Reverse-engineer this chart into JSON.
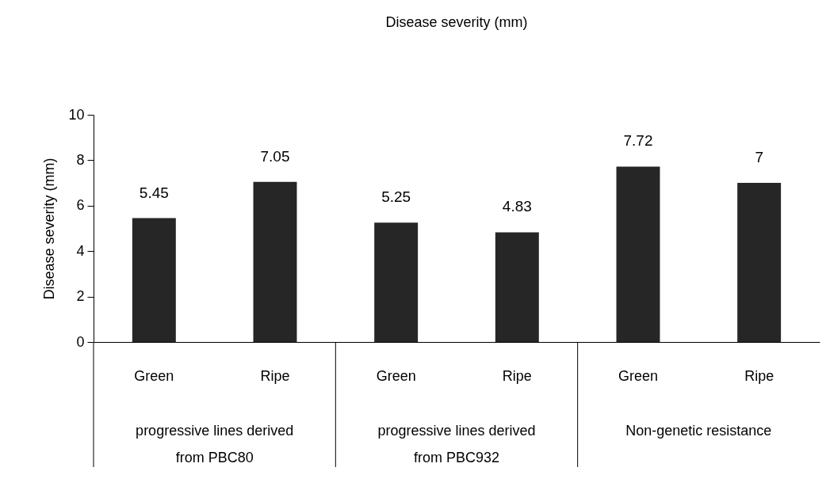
{
  "chart_data": {
    "type": "bar",
    "title": "Disease severity (mm)",
    "ylabel": "Disease severity (mm)",
    "categories": [
      "Green",
      "Ripe",
      "Green",
      "Ripe",
      "Green",
      "Ripe"
    ],
    "values": [
      5.45,
      7.05,
      5.25,
      4.83,
      7.72,
      7
    ],
    "color": "#262626",
    "data_labels": true,
    "ylim": [
      0,
      10
    ],
    "yticks": [
      0,
      2,
      4,
      6,
      8,
      10
    ],
    "grid": false,
    "annotations": [
      "progressive lines derived from PBC80",
      "progressive lines derived from PBC932",
      "Non-genetic resistance"
    ]
  }
}
